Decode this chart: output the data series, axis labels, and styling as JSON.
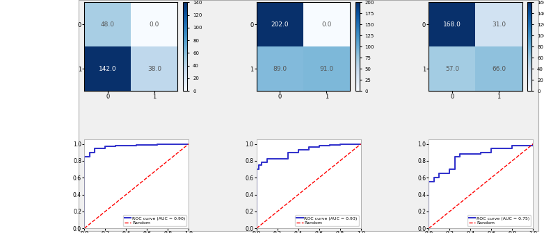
{
  "matrices": [
    [
      [
        48.0,
        0.0
      ],
      [
        142.0,
        38.0
      ]
    ],
    [
      [
        202.0,
        0.0
      ],
      [
        89.0,
        91.0
      ]
    ],
    [
      [
        168.0,
        31.0
      ],
      [
        57.0,
        66.0
      ]
    ]
  ],
  "roc_aucs": [
    0.9,
    0.93,
    0.75
  ],
  "cmap": "Blues",
  "cm_vmin": [
    0,
    0,
    0
  ],
  "cm_vmax": [
    140,
    200,
    160
  ],
  "tick_labels": [
    "0",
    "1"
  ],
  "roc_color": "#3333cc",
  "roc_linewidth": 1.5,
  "random_color": "red",
  "random_linestyle": "--",
  "roc_curves": [
    {
      "fpr": [
        0.0,
        0.0,
        0.0,
        0.05,
        0.05,
        0.1,
        0.1,
        0.2,
        0.3,
        0.5,
        0.7,
        1.0
      ],
      "tpr": [
        0.0,
        0.8,
        0.85,
        0.85,
        0.9,
        0.9,
        0.95,
        0.97,
        0.98,
        0.99,
        1.0,
        1.0
      ]
    },
    {
      "fpr": [
        0.0,
        0.0,
        0.0,
        0.02,
        0.05,
        0.1,
        0.3,
        0.4,
        0.5,
        0.6,
        0.7,
        0.8,
        1.0
      ],
      "tpr": [
        0.0,
        0.5,
        0.7,
        0.75,
        0.78,
        0.82,
        0.9,
        0.93,
        0.96,
        0.98,
        0.99,
        1.0,
        1.0
      ]
    },
    {
      "fpr": [
        0.0,
        0.0,
        0.05,
        0.1,
        0.2,
        0.25,
        0.25,
        0.3,
        0.5,
        0.6,
        0.8,
        1.0
      ],
      "tpr": [
        0.0,
        0.55,
        0.6,
        0.65,
        0.7,
        0.7,
        0.85,
        0.88,
        0.9,
        0.95,
        0.98,
        1.0
      ]
    }
  ]
}
